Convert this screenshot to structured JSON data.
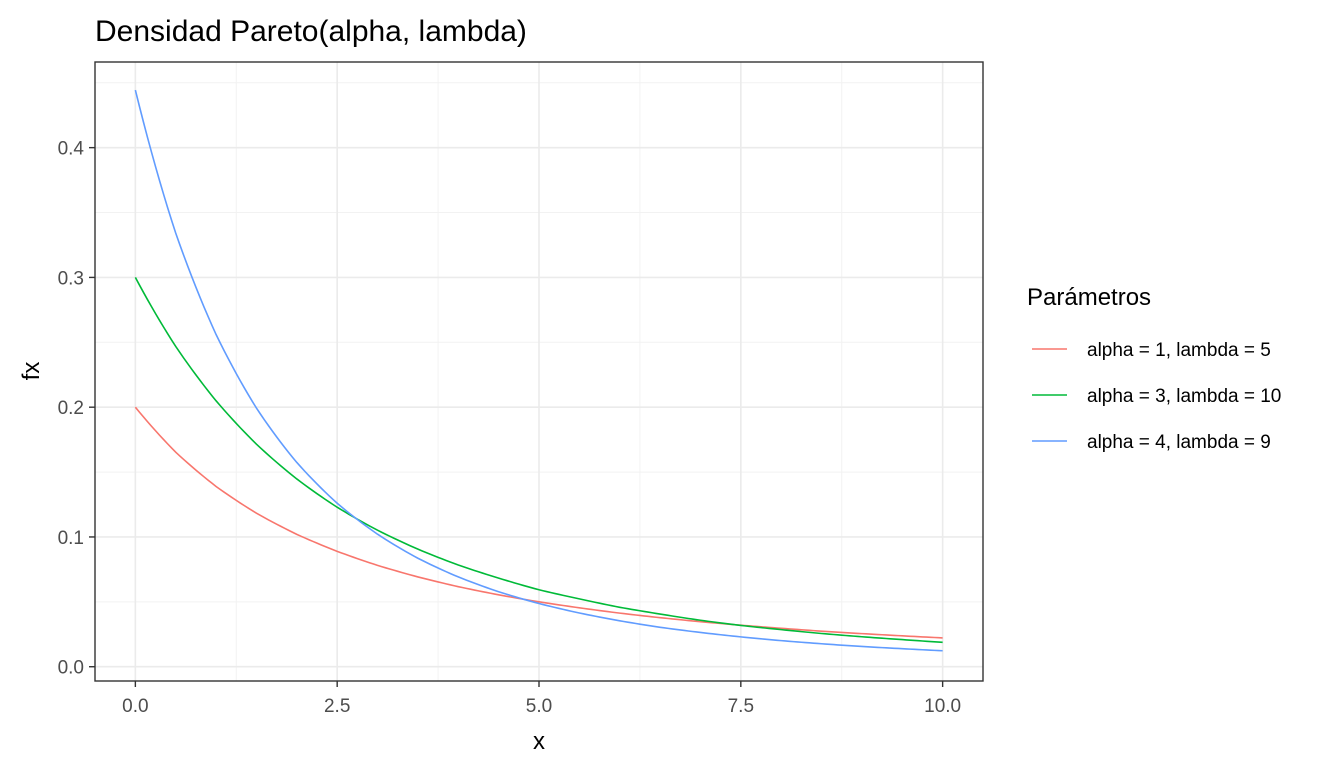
{
  "chart_data": {
    "type": "line",
    "title": "Densidad Pareto(alpha, lambda)",
    "xlabel": "x",
    "ylabel": "fx",
    "xlim": [
      -0.5,
      10.5
    ],
    "ylim": [
      -0.011,
      0.466
    ],
    "x_ticks": [
      0,
      2.5,
      5,
      7.5,
      10
    ],
    "x_tick_labels": [
      "0.0",
      "2.5",
      "5.0",
      "7.5",
      "10.0"
    ],
    "y_ticks": [
      0,
      0.1,
      0.2,
      0.3,
      0.4
    ],
    "y_tick_labels": [
      "0.0",
      "0.1",
      "0.2",
      "0.3",
      "0.4"
    ],
    "grid": true,
    "legend": {
      "title": "Parámetros",
      "position": "right"
    },
    "x": [
      0,
      0.5,
      1,
      1.5,
      2,
      2.5,
      3,
      3.5,
      4,
      4.5,
      5,
      5.5,
      6,
      6.5,
      7,
      7.5,
      8,
      8.5,
      9,
      9.5,
      10
    ],
    "series": [
      {
        "name": "alpha = 1, lambda = 5",
        "color": "#F8766D",
        "values": [
          0.2,
          0.1653,
          0.1389,
          0.1183,
          0.102,
          0.0889,
          0.0781,
          0.0692,
          0.0617,
          0.0554,
          0.05,
          0.0454,
          0.0413,
          0.0378,
          0.0347,
          0.032,
          0.0296,
          0.0274,
          0.0255,
          0.0238,
          0.0222
        ]
      },
      {
        "name": "alpha = 3, lambda = 10",
        "color": "#00BA38",
        "values": [
          0.3,
          0.2468,
          0.2049,
          0.1715,
          0.1447,
          0.1229,
          0.1052,
          0.0906,
          0.0784,
          0.0683,
          0.0593,
          0.0523,
          0.0458,
          0.0406,
          0.0358,
          0.0318,
          0.0286,
          0.0256,
          0.0231,
          0.0209,
          0.0188
        ]
      },
      {
        "name": "alpha = 4, lambda = 9",
        "color": "#619CFF",
        "values": [
          0.4444,
          0.3341,
          0.256,
          0.1993,
          0.1574,
          0.126,
          0.1021,
          0.0836,
          0.0692,
          0.0578,
          0.0487,
          0.0414,
          0.0354,
          0.0304,
          0.0264,
          0.023,
          0.0201,
          0.0177,
          0.0156,
          0.0139,
          0.0123
        ]
      }
    ]
  }
}
